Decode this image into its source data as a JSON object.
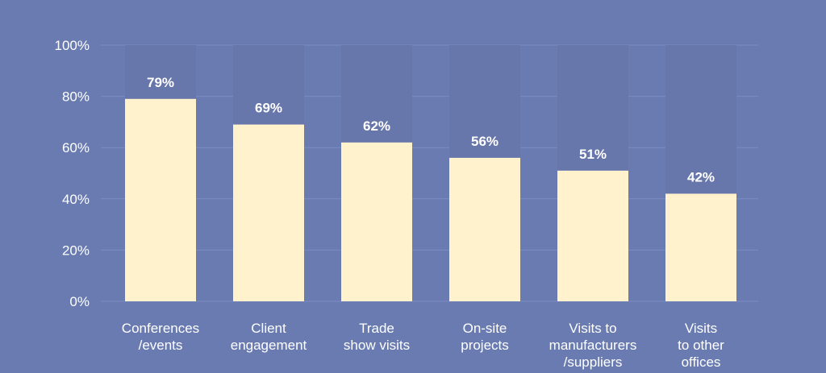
{
  "chart_data": {
    "type": "bar",
    "categories": [
      [
        "Conferences",
        "/events"
      ],
      [
        "Client",
        "engagement"
      ],
      [
        "Trade",
        "show visits"
      ],
      [
        "On-site",
        "projects"
      ],
      [
        "Visits to",
        "manufacturers",
        "/suppliers"
      ],
      [
        "Visits",
        "to other",
        "offices"
      ]
    ],
    "values": [
      79,
      69,
      62,
      56,
      51,
      42
    ],
    "value_labels": [
      "79%",
      "69%",
      "62%",
      "56%",
      "51%",
      "42%"
    ],
    "y_ticks": [
      0,
      20,
      40,
      60,
      80,
      100
    ],
    "y_tick_labels": [
      "0%",
      "20%",
      "40%",
      "60%",
      "80%",
      "100%"
    ],
    "ylim": [
      0,
      100
    ],
    "grid": true,
    "colors": {
      "background": "#6a7bb1",
      "bar": "#fff2cc",
      "bar_track": "#6877ab",
      "grid": "#7a8cc4",
      "text": "#ffffff"
    }
  }
}
